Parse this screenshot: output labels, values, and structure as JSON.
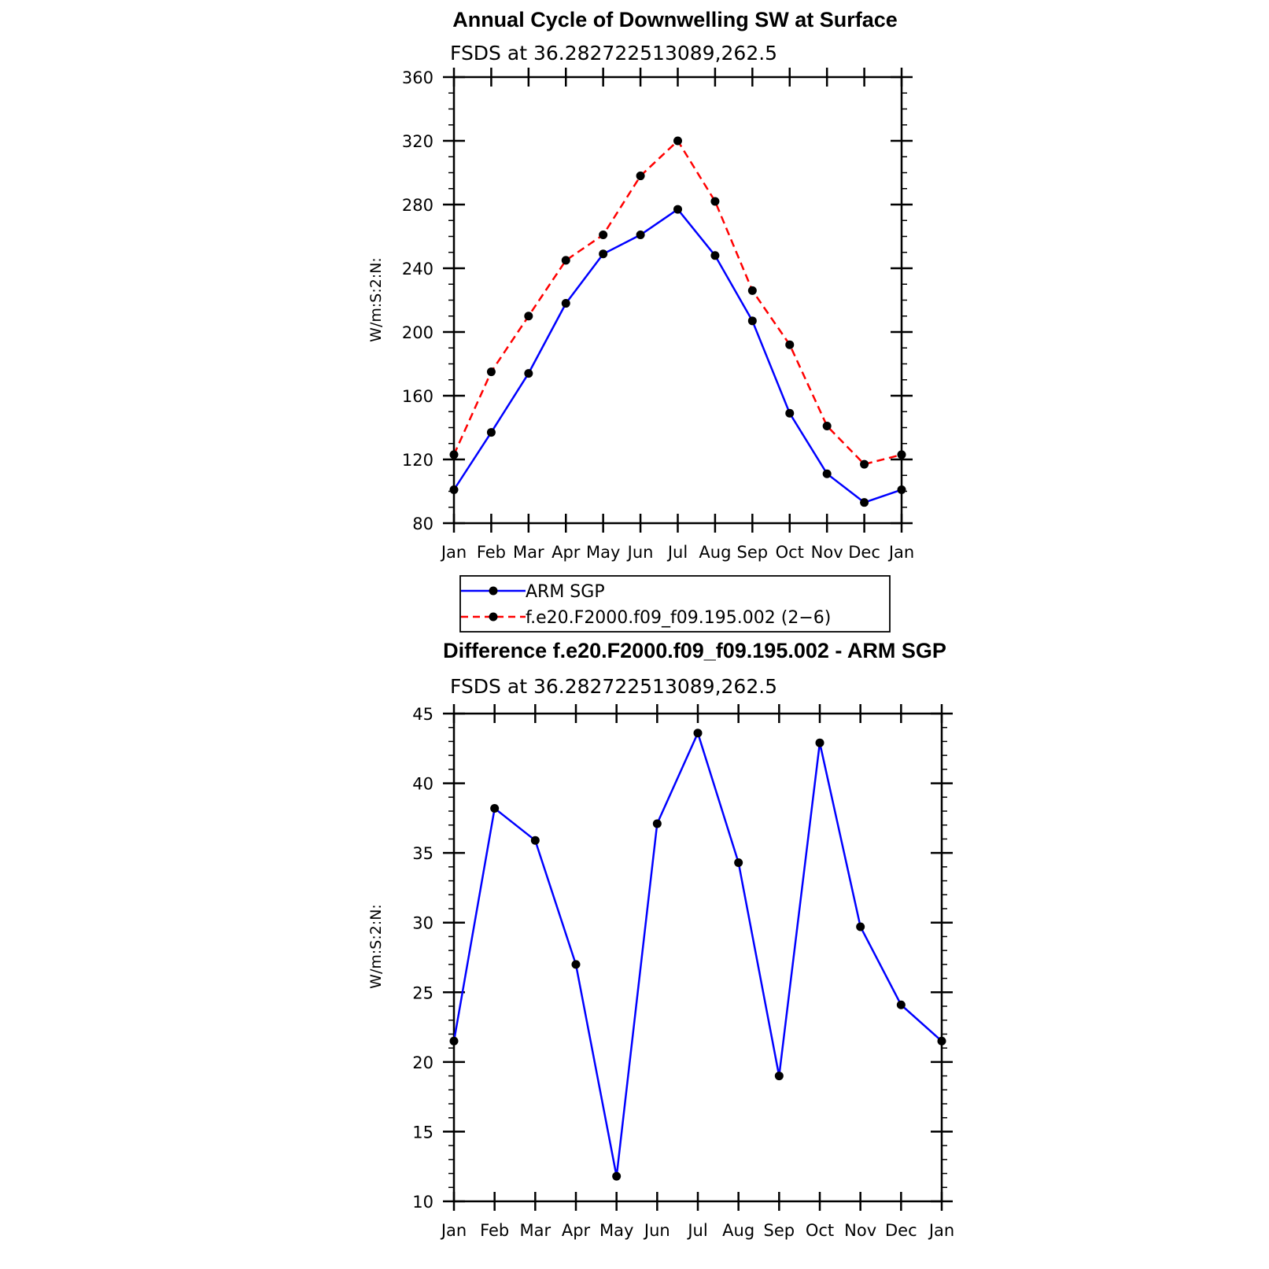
{
  "chart_data": [
    {
      "type": "line",
      "title": "Annual Cycle of Downwelling SW at Surface",
      "subtitle": "FSDS at 36.282722513089,262.5",
      "xlabel": "",
      "ylabel": "W/m:S:2:N:",
      "ylim": [
        80,
        360
      ],
      "yticks": [
        80,
        120,
        160,
        200,
        240,
        280,
        320,
        360
      ],
      "categories": [
        "Jan",
        "Feb",
        "Mar",
        "Apr",
        "May",
        "Jun",
        "Jul",
        "Aug",
        "Sep",
        "Oct",
        "Nov",
        "Dec",
        "Jan"
      ],
      "series": [
        {
          "name": "ARM SGP",
          "color": "#0000ff",
          "dash": "solid",
          "values": [
            101,
            137,
            174,
            218,
            249,
            261,
            277,
            248,
            207,
            149,
            111,
            93,
            101
          ]
        },
        {
          "name": "f.e20.F2000.f09_f09.195.002 (2−6)",
          "color": "#ff0000",
          "dash": "dashed",
          "values": [
            123,
            175,
            210,
            245,
            261,
            298,
            320,
            282,
            226,
            192,
            141,
            117,
            123
          ]
        }
      ],
      "legend": {
        "position": "bottom",
        "entries": [
          "ARM SGP",
          "f.e20.F2000.f09_f09.195.002 (2−6)"
        ]
      }
    },
    {
      "type": "line",
      "title": "Difference f.e20.F2000.f09_f09.195.002 - ARM SGP",
      "subtitle": "FSDS at 36.282722513089,262.5",
      "xlabel": "",
      "ylabel": "W/m:S:2:N:",
      "ylim": [
        10,
        45
      ],
      "yticks": [
        10,
        15,
        20,
        25,
        30,
        35,
        40,
        45
      ],
      "categories": [
        "Jan",
        "Feb",
        "Mar",
        "Apr",
        "May",
        "Jun",
        "Jul",
        "Aug",
        "Sep",
        "Oct",
        "Nov",
        "Dec",
        "Jan"
      ],
      "series": [
        {
          "name": "Difference",
          "color": "#0000ff",
          "dash": "solid",
          "values": [
            21.5,
            38.2,
            35.9,
            27.0,
            11.8,
            37.1,
            43.6,
            34.3,
            19.0,
            42.9,
            29.7,
            24.1,
            21.5
          ]
        }
      ]
    }
  ]
}
